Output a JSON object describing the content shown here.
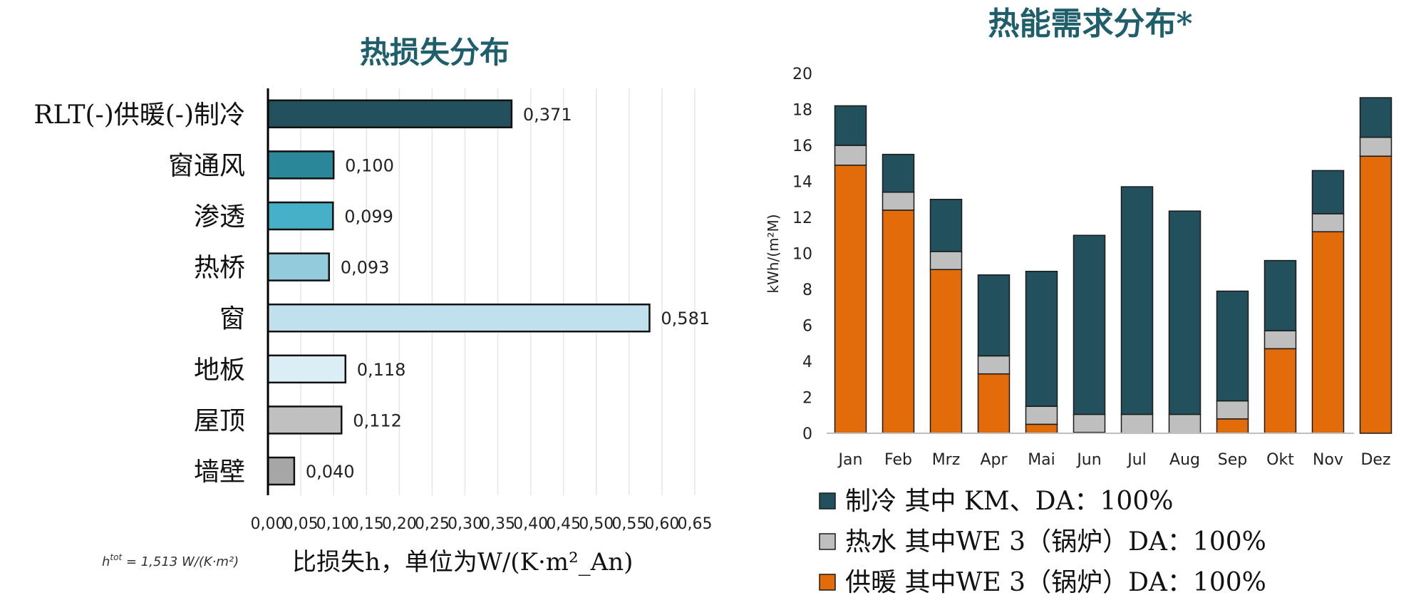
{
  "chart_data": [
    {
      "type": "bar",
      "orientation": "horizontal",
      "title": "热损失分布",
      "categories": [
        "RLT(-)供暖(-)制冷",
        "窗通风",
        "渗透",
        "热桥",
        "窗",
        "地板",
        "屋顶",
        "墙壁"
      ],
      "values": [
        0.371,
        0.1,
        0.099,
        0.093,
        0.581,
        0.118,
        0.112,
        0.04
      ],
      "value_labels": [
        "0,371",
        "0,100",
        "0,099",
        "0,093",
        "0,581",
        "0,118",
        "0,112",
        "0,040"
      ],
      "colors": [
        "#22505c",
        "#2a8799",
        "#45b0c8",
        "#93cbdc",
        "#bfe0ec",
        "#dceef5",
        "#c0c0c0",
        "#a6a6a6"
      ],
      "xlabel": "比损失h，单位为W/(K·m²_An)",
      "xlim": [
        0,
        0.65
      ],
      "xticks": [
        "0,00",
        "0,05",
        "0,10",
        "0,15",
        "0,20",
        "0,25",
        "0,30",
        "0,35",
        "0,40",
        "0,45",
        "0,50",
        "0,55",
        "0,60",
        "0,65"
      ],
      "grid": true,
      "note": "h",
      "note_sup": "tot",
      "note_rest": " = 1,513 W/(K·m²)"
    },
    {
      "type": "bar",
      "stacked": true,
      "title": "热能需求分布*",
      "categories": [
        "Jan",
        "Feb",
        "Mrz",
        "Apr",
        "Mai",
        "Jun",
        "Jul",
        "Aug",
        "Sep",
        "Okt",
        "Nov",
        "Dez"
      ],
      "series": [
        {
          "name": "供暖 其中WE 3（锅炉）DA：100%",
          "color": "#e26b0a",
          "values": [
            14.9,
            12.4,
            9.1,
            3.3,
            0.5,
            0.05,
            0.0,
            0.0,
            0.8,
            4.7,
            11.2,
            15.4
          ]
        },
        {
          "name": "热水 其中WE 3（锅炉）DA：100%",
          "color": "#bfbfbf",
          "values": [
            1.1,
            1.0,
            1.0,
            1.0,
            1.0,
            1.0,
            1.05,
            1.05,
            1.0,
            1.0,
            1.0,
            1.05
          ]
        },
        {
          "name": "制冷 其中 KM、DA：100%",
          "color": "#22505c",
          "values": [
            2.2,
            2.1,
            2.9,
            4.5,
            7.5,
            9.95,
            12.65,
            11.3,
            6.1,
            3.9,
            2.4,
            2.2
          ]
        }
      ],
      "ylabel": "kWh/(m²M)",
      "ylim": [
        0,
        20
      ],
      "yticks": [
        "0",
        "2",
        "4",
        "6",
        "8",
        "10",
        "12",
        "14",
        "16",
        "18",
        "20"
      ],
      "legend": "bottom",
      "legend_order": [
        2,
        1,
        0
      ],
      "grid": false
    }
  ]
}
